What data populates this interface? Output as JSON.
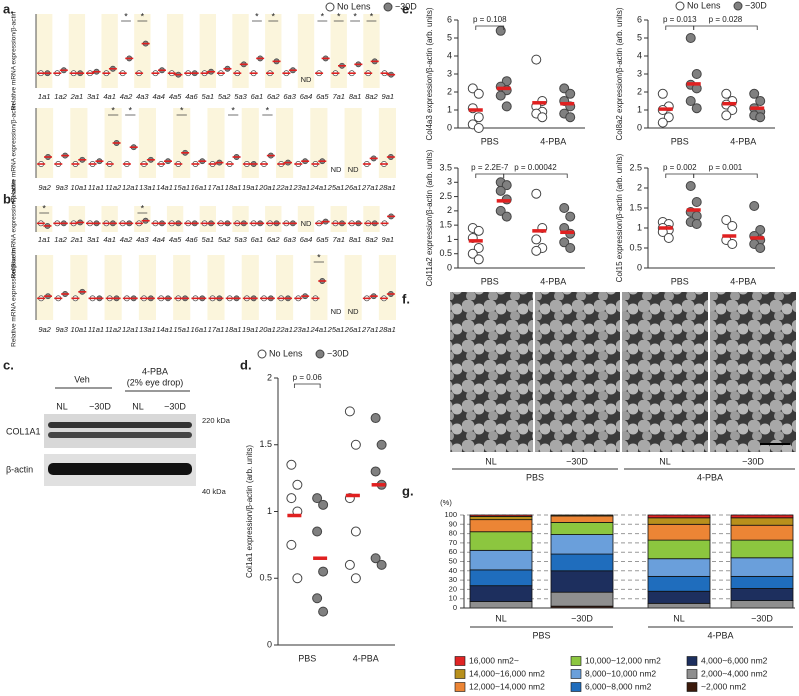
{
  "panel_labels": [
    "a.",
    "b.",
    "c.",
    "d.",
    "e.",
    "f.",
    "g."
  ],
  "blot": {
    "groups": [
      "Veh",
      [
        "4-PBA",
        "(2% eye drop)"
      ]
    ],
    "lanes": [
      "NL",
      "−30D",
      "NL",
      "−30D"
    ],
    "bands": [
      "COL1A1",
      "β-actin"
    ],
    "markers": [
      "220 kDa",
      "40 kDa"
    ]
  },
  "micrographs": {
    "labels": [
      "NL",
      "−30D",
      "NL",
      "−30D"
    ],
    "groups": [
      "PBS",
      "4-PBA"
    ]
  },
  "chart_data": [
    {
      "type": "strip",
      "ylabel": "Relative mRNA expression/β-actin",
      "legend": true,
      "marker": "*",
      "missing_label": "ND",
      "mean_color": "#e02020",
      "ylim": [
        0,
        5
      ],
      "categories": [
        "1a1",
        "1a2",
        "2a1",
        "3a1",
        "4a1",
        "4a2",
        "4a3",
        "4a4",
        "4a5",
        "4a6",
        "5a1",
        "5a2",
        "5a3",
        "6a1",
        "6a2",
        "6a3",
        "6a4",
        "6a5",
        "7a1",
        "8a1",
        "8a2",
        "9a1"
      ],
      "significant": [
        "4a2",
        "4a3",
        "6a1",
        "6a2",
        "6a5",
        "7a1",
        "8a1",
        "8a2"
      ],
      "series": [
        {
          "name": "No Lens",
          "color": "#ffffff",
          "values": [
            1,
            1,
            1,
            1,
            1,
            1,
            1,
            1,
            1,
            1,
            1,
            1,
            1,
            1,
            1,
            1,
            null,
            1,
            1,
            1,
            1,
            1
          ]
        },
        {
          "name": "−30D",
          "color": "#808080",
          "values": [
            1.0,
            1.2,
            1.0,
            1.1,
            1.3,
            2.0,
            3.0,
            1.2,
            0.9,
            1.0,
            1.1,
            1.3,
            1.6,
            2.0,
            1.8,
            1.2,
            null,
            2.0,
            1.5,
            1.6,
            1.8,
            0.9
          ]
        }
      ]
    },
    {
      "type": "strip",
      "ylabel": "Relative mRNA expression/β-actin",
      "legend": false,
      "marker": "*",
      "missing_label": "ND",
      "mean_color": "#e02020",
      "ylim": [
        0,
        5
      ],
      "categories": [
        "9a2",
        "9a3",
        "10a1",
        "11a1",
        "11a2",
        "12a1",
        "13a1",
        "14a1",
        "15a1",
        "16a1",
        "17a1",
        "18a1",
        "19a1",
        "20a1",
        "22a1",
        "23a1",
        "24a1",
        "25a1",
        "26a1",
        "27a1",
        "28a1"
      ],
      "significant": [
        "11a2",
        "12a1",
        "15a1",
        "18a1",
        "20a1"
      ],
      "series": [
        {
          "name": "No Lens",
          "color": "#ffffff",
          "values": [
            1,
            1,
            1,
            1,
            1,
            1,
            1,
            1,
            1,
            1,
            1,
            1,
            1,
            1,
            1,
            1,
            1,
            null,
            null,
            1,
            1
          ]
        },
        {
          "name": "−30D",
          "color": "#808080",
          "values": [
            1.5,
            1.6,
            1.3,
            1.2,
            2.5,
            2.2,
            1.3,
            1.2,
            1.8,
            1.2,
            1.1,
            1.5,
            1.0,
            1.6,
            1.1,
            1.2,
            1.2,
            null,
            null,
            1.4,
            1.5
          ]
        }
      ]
    },
    {
      "type": "strip",
      "ylabel": "Relative mRNA expression/β-actin",
      "legend": false,
      "marker": "*",
      "missing_label": "ND",
      "mean_color": "#e02020",
      "ylim": [
        0,
        3
      ],
      "categories": [
        "1a1",
        "1a2",
        "2a1",
        "3a1",
        "4a1",
        "4a2",
        "4a3",
        "4a4",
        "4a5",
        "4a6",
        "5a1",
        "5a2",
        "5a3",
        "6a1",
        "6a2",
        "6a3",
        "6a4",
        "6a5",
        "7a1",
        "8a1",
        "8a2",
        "9a1"
      ],
      "significant": [
        "1a1",
        "4a3"
      ],
      "series": [
        {
          "name": "No Lens",
          "color": "#ffffff",
          "values": [
            1,
            1,
            1,
            1,
            1,
            1,
            1,
            1,
            1,
            1,
            1,
            1,
            1,
            1,
            1,
            1,
            null,
            1,
            1,
            1,
            1,
            1
          ]
        },
        {
          "name": "−30D",
          "color": "#808080",
          "values": [
            0.7,
            1.0,
            1.1,
            1.0,
            1.0,
            1.0,
            1.3,
            1.0,
            1.0,
            1.0,
            1.0,
            1.0,
            1.0,
            1.0,
            1.0,
            1.0,
            null,
            1.2,
            1.0,
            1.0,
            1.0,
            1.8
          ]
        }
      ]
    },
    {
      "type": "strip",
      "ylabel": "Relative mRNA expression/β-actin",
      "legend": false,
      "marker": "*",
      "missing_label": "ND",
      "mean_color": "#e02020",
      "ylim": [
        0,
        3
      ],
      "categories": [
        "9a2",
        "9a3",
        "10a1",
        "11a1",
        "11a2",
        "12a1",
        "13a1",
        "14a1",
        "15a1",
        "16a1",
        "17a1",
        "18a1",
        "19a1",
        "20a1",
        "22a1",
        "23a1",
        "24a1",
        "25a1",
        "26a1",
        "27a1",
        "28a1"
      ],
      "significant": [
        "24a1"
      ],
      "series": [
        {
          "name": "No Lens",
          "color": "#ffffff",
          "values": [
            1,
            1,
            1,
            1,
            1,
            1,
            1,
            1,
            1,
            1,
            1,
            1,
            1,
            1,
            1,
            1,
            1,
            null,
            null,
            1,
            1
          ]
        },
        {
          "name": "−30D",
          "color": "#808080",
          "values": [
            1.1,
            1.2,
            1.3,
            1.0,
            1.0,
            1.0,
            1.0,
            1.0,
            1.0,
            1.0,
            1.0,
            1.0,
            1.0,
            1.0,
            1.0,
            1.1,
            1.8,
            null,
            null,
            1.1,
            1.2
          ]
        }
      ]
    },
    {
      "type": "dot",
      "ylabel": "Col1a1 expression/β-actin (arb. units)",
      "legend": true,
      "mean_color": "#e02020",
      "categories": [
        "PBS",
        "4-PBA"
      ],
      "ylim": [
        0,
        2
      ],
      "yticks": [
        0,
        0.5,
        1,
        1.5,
        2
      ],
      "annotations": [
        {
          "text": "p = 0.06",
          "from": [
            "PBS",
            "No Lens"
          ],
          "to": [
            "PBS",
            "−30D"
          ]
        }
      ],
      "series": [
        {
          "name": "No Lens",
          "color": "#ffffff",
          "values": [
            [
              1.35,
              1.2,
              1.1,
              1.0,
              0.75,
              0.5
            ],
            [
              1.75,
              1.5,
              1.1,
              0.85,
              0.6,
              0.5
            ]
          ],
          "means": [
            0.97,
            1.12
          ]
        },
        {
          "name": "−30D",
          "color": "#808080",
          "values": [
            [
              1.1,
              1.05,
              0.85,
              0.55,
              0.35,
              0.25
            ],
            [
              1.7,
              1.5,
              1.3,
              1.2,
              0.65,
              0.6
            ]
          ],
          "means": [
            0.65,
            1.2
          ]
        }
      ]
    },
    {
      "type": "dot",
      "ylabel": "Col4a3 expression/β-actin (arb. units)",
      "legend": true,
      "mean_color": "#e02020",
      "categories": [
        "PBS",
        "4-PBA"
      ],
      "ylim": [
        0,
        6
      ],
      "yticks": [
        0,
        1,
        2,
        3,
        4,
        5,
        6
      ],
      "annotations": [
        {
          "text": "p = 0.108",
          "from": [
            "PBS",
            "No Lens"
          ],
          "to": [
            "PBS",
            "−30D"
          ]
        }
      ],
      "series": [
        {
          "name": "No Lens",
          "color": "#ffffff",
          "values": [
            [
              2.2,
              1.9,
              1.1,
              0.6,
              0.2,
              0
            ],
            [
              3.8,
              1.5,
              1.2,
              0.9,
              0.8,
              0.6
            ]
          ],
          "means": [
            1.0,
            1.4
          ]
        },
        {
          "name": "−30D",
          "color": "#808080",
          "values": [
            [
              5.4,
              2.6,
              2.3,
              2.1,
              1.8,
              1.2
            ],
            [
              2.2,
              1.9,
              1.5,
              1.2,
              0.8,
              0.6
            ]
          ],
          "means": [
            2.2,
            1.35
          ]
        }
      ]
    },
    {
      "type": "dot",
      "ylabel": "Col8a2 expression/β-actin (arb. units)",
      "legend": false,
      "mean_color": "#e02020",
      "categories": [
        "PBS",
        "4-PBA"
      ],
      "ylim": [
        0,
        6
      ],
      "yticks": [
        0,
        1,
        2,
        3,
        4,
        5,
        6
      ],
      "annotations": [
        {
          "text": "p = 0.013",
          "from": [
            "PBS",
            "No Lens"
          ],
          "to": [
            "PBS",
            "−30D"
          ]
        },
        {
          "text": "p = 0.028",
          "from": [
            "PBS",
            "−30D"
          ],
          "to": [
            "4-PBA",
            "−30D"
          ]
        }
      ],
      "series": [
        {
          "name": "No Lens",
          "color": "#ffffff",
          "values": [
            [
              1.9,
              1.2,
              1.0,
              0.6,
              0.3
            ],
            [
              1.9,
              1.5,
              1.3,
              1.0,
              0.7
            ]
          ],
          "means": [
            1.05,
            1.35
          ]
        },
        {
          "name": "−30D",
          "color": "#808080",
          "values": [
            [
              5.0,
              3.0,
              2.4,
              2.2,
              1.5,
              1.1
            ],
            [
              1.9,
              1.5,
              1.1,
              0.9,
              0.7,
              0.6
            ]
          ],
          "means": [
            2.45,
            1.1
          ]
        }
      ]
    },
    {
      "type": "dot",
      "ylabel": "Col11a2 expression/β-actin (arb. units)",
      "legend": false,
      "mean_color": "#e02020",
      "categories": [
        "PBS",
        "4-PBA"
      ],
      "ylim": [
        0,
        3.5
      ],
      "yticks": [
        0,
        0.5,
        1,
        1.5,
        2,
        2.5,
        3,
        3.5
      ],
      "annotations": [
        {
          "text": "p = 2.2E-7",
          "from": [
            "PBS",
            "No Lens"
          ],
          "to": [
            "PBS",
            "−30D"
          ]
        },
        {
          "text": "p = 0.00042",
          "from": [
            "PBS",
            "−30D"
          ],
          "to": [
            "4-PBA",
            "−30D"
          ]
        }
      ],
      "series": [
        {
          "name": "No Lens",
          "color": "#ffffff",
          "values": [
            [
              1.4,
              1.3,
              1.05,
              0.7,
              0.5,
              0.3
            ],
            [
              2.6,
              1.4,
              1.0,
              0.7,
              0.6
            ]
          ],
          "means": [
            0.95,
            1.3
          ]
        },
        {
          "name": "−30D",
          "color": "#808080",
          "values": [
            [
              3.0,
              2.9,
              2.7,
              2.4,
              2.0,
              1.8
            ],
            [
              2.1,
              1.8,
              1.4,
              1.2,
              0.9,
              0.7
            ]
          ],
          "means": [
            2.35,
            1.25
          ]
        }
      ]
    },
    {
      "type": "dot",
      "ylabel": "Col15 expression/β-actin (arb. units)",
      "legend": false,
      "mean_color": "#e02020",
      "categories": [
        "PBS",
        "4-PBA"
      ],
      "ylim": [
        0,
        2.5
      ],
      "yticks": [
        0,
        0.5,
        1,
        1.5,
        2,
        2.5
      ],
      "annotations": [
        {
          "text": "p = 0.002",
          "from": [
            "PBS",
            "No Lens"
          ],
          "to": [
            "PBS",
            "−30D"
          ]
        },
        {
          "text": "p = 0.001",
          "from": [
            "PBS",
            "−30D"
          ],
          "to": [
            "4-PBA",
            "−30D"
          ]
        }
      ],
      "series": [
        {
          "name": "No Lens",
          "color": "#ffffff",
          "values": [
            [
              1.15,
              1.1,
              1.0,
              0.95,
              0.9,
              0.75
            ],
            [
              1.2,
              1.05,
              0.7,
              0.6
            ]
          ],
          "means": [
            1.0,
            0.8
          ]
        },
        {
          "name": "−30D",
          "color": "#808080",
          "values": [
            [
              2.05,
              1.65,
              1.4,
              1.3,
              1.15,
              1.1
            ],
            [
              1.55,
              0.95,
              0.8,
              0.7,
              0.6,
              0.5
            ]
          ],
          "means": [
            1.45,
            0.75
          ]
        }
      ]
    },
    {
      "type": "stacked_bar",
      "ylabel": "(%)",
      "grid": true,
      "ylim": [
        0,
        100
      ],
      "yticks": [
        0,
        10,
        20,
        30,
        40,
        50,
        60,
        70,
        80,
        90,
        100
      ],
      "categories": [
        "NL",
        "−30D",
        "NL",
        "−30D"
      ],
      "groups": [
        "PBS",
        "4-PBA"
      ],
      "series": [
        {
          "name": "16,000 nm2~",
          "color": "#e02424",
          "values": [
            1.5,
            0,
            3,
            3
          ]
        },
        {
          "name": "14,000~16,000 nm2",
          "color": "#b8901c",
          "values": [
            3.5,
            1,
            7,
            8
          ]
        },
        {
          "name": "12,000~14,000 nm2",
          "color": "#ec8535",
          "values": [
            13,
            7,
            17,
            16
          ]
        },
        {
          "name": "10,000~12,000 nm2",
          "color": "#8cc63f",
          "values": [
            20,
            13,
            20,
            19
          ]
        },
        {
          "name": "8,000~10,000 nm2",
          "color": "#6a9fdb",
          "values": [
            21,
            21,
            19,
            20
          ]
        },
        {
          "name": "6,000~8,000 nm2",
          "color": "#1f6dbd",
          "values": [
            17,
            18,
            16,
            13
          ]
        },
        {
          "name": "4,000~6,000 nm2",
          "color": "#1d2f5e",
          "values": [
            17,
            23,
            13,
            13
          ]
        },
        {
          "name": "2,000~4,000 nm2",
          "color": "#8f8f8f",
          "values": [
            7,
            15,
            5,
            8
          ]
        },
        {
          "name": "~2,000 nm2",
          "color": "#3b1a0c",
          "values": [
            0,
            2,
            0,
            0
          ]
        }
      ]
    }
  ]
}
